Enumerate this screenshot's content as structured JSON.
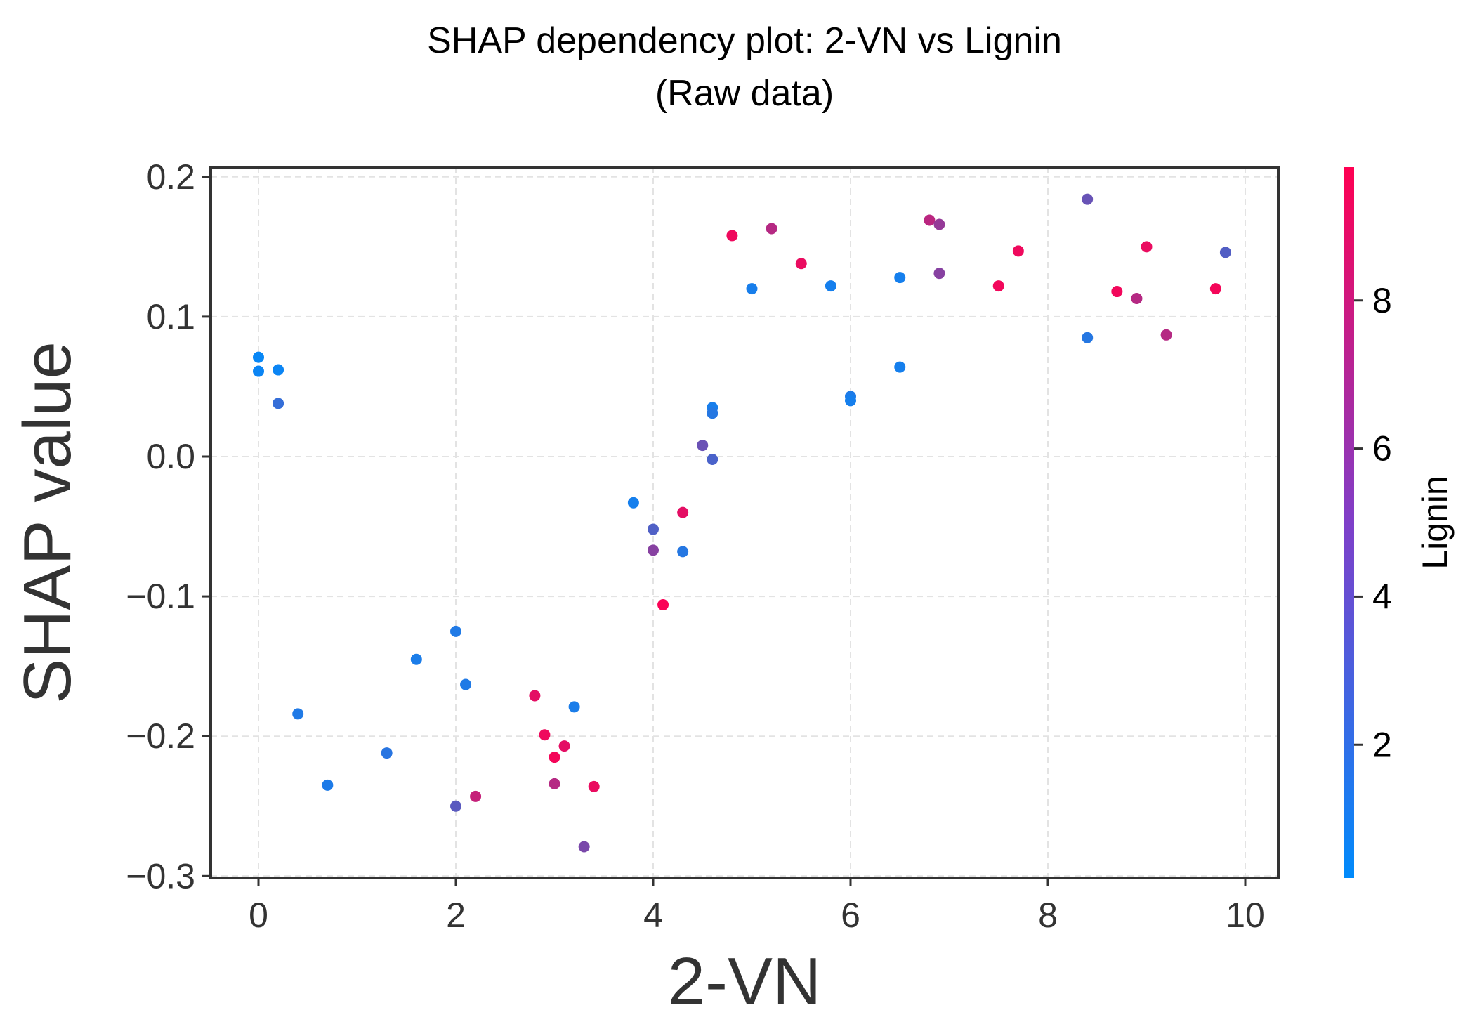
{
  "chart_data": {
    "type": "scatter",
    "title": "SHAP dependency plot: 2-VN vs Lignin",
    "subtitle": "(Raw data)",
    "xlabel": "2-VN",
    "ylabel": "SHAP value",
    "xlim": [
      -0.5,
      10.3
    ],
    "ylim": [
      -0.3,
      0.205
    ],
    "x_ticks": [
      0,
      2,
      4,
      6,
      8,
      10
    ],
    "x_tick_labels": [
      "0",
      "2",
      "4",
      "6",
      "8",
      "10"
    ],
    "y_ticks": [
      -0.3,
      -0.2,
      -0.1,
      0.0,
      0.1,
      0.2
    ],
    "y_tick_labels": [
      "−0.3",
      "−0.2",
      "−0.1",
      "0.0",
      "0.1",
      "0.2"
    ],
    "grid": true,
    "colorbar": {
      "label": "Lignin",
      "range": [
        0.2,
        9.8
      ],
      "ticks": [
        2,
        4,
        6,
        8
      ],
      "tick_labels": [
        "2",
        "4",
        "6",
        "8"
      ],
      "colors": [
        "#008bfb",
        "#ff0052"
      ]
    },
    "points": [
      {
        "x": 0.0,
        "y": 0.071,
        "c": 0.5
      },
      {
        "x": 0.0,
        "y": 0.061,
        "c": 0.6
      },
      {
        "x": 0.2,
        "y": 0.062,
        "c": 0.6
      },
      {
        "x": 0.2,
        "y": 0.038,
        "c": 2.2
      },
      {
        "x": 0.4,
        "y": -0.184,
        "c": 1.4
      },
      {
        "x": 0.7,
        "y": -0.235,
        "c": 1.3
      },
      {
        "x": 1.3,
        "y": -0.212,
        "c": 1.7
      },
      {
        "x": 1.6,
        "y": -0.145,
        "c": 1.2
      },
      {
        "x": 2.0,
        "y": -0.125,
        "c": 1.4
      },
      {
        "x": 2.1,
        "y": -0.163,
        "c": 1.4
      },
      {
        "x": 2.0,
        "y": -0.25,
        "c": 3.6
      },
      {
        "x": 2.2,
        "y": -0.243,
        "c": 7.6
      },
      {
        "x": 2.8,
        "y": -0.171,
        "c": 8.8
      },
      {
        "x": 2.9,
        "y": -0.199,
        "c": 9.2
      },
      {
        "x": 3.0,
        "y": -0.215,
        "c": 9.4
      },
      {
        "x": 3.1,
        "y": -0.207,
        "c": 8.8
      },
      {
        "x": 3.0,
        "y": -0.234,
        "c": 7.0
      },
      {
        "x": 3.2,
        "y": -0.179,
        "c": 1.2
      },
      {
        "x": 3.4,
        "y": -0.236,
        "c": 9.0
      },
      {
        "x": 3.3,
        "y": -0.279,
        "c": 4.8
      },
      {
        "x": 3.8,
        "y": -0.033,
        "c": 1.0
      },
      {
        "x": 4.0,
        "y": -0.052,
        "c": 3.2
      },
      {
        "x": 4.0,
        "y": -0.067,
        "c": 5.3
      },
      {
        "x": 4.3,
        "y": -0.04,
        "c": 8.8
      },
      {
        "x": 4.3,
        "y": -0.068,
        "c": 1.6
      },
      {
        "x": 4.1,
        "y": -0.106,
        "c": 9.6
      },
      {
        "x": 4.5,
        "y": 0.008,
        "c": 4.2
      },
      {
        "x": 4.6,
        "y": -0.002,
        "c": 3.0
      },
      {
        "x": 4.6,
        "y": 0.035,
        "c": 1.1
      },
      {
        "x": 4.6,
        "y": 0.031,
        "c": 1.6
      },
      {
        "x": 4.8,
        "y": 0.158,
        "c": 9.2
      },
      {
        "x": 5.0,
        "y": 0.12,
        "c": 1.1
      },
      {
        "x": 5.2,
        "y": 0.163,
        "c": 7.0
      },
      {
        "x": 5.5,
        "y": 0.138,
        "c": 9.0
      },
      {
        "x": 5.8,
        "y": 0.122,
        "c": 1.0
      },
      {
        "x": 6.0,
        "y": 0.043,
        "c": 1.3
      },
      {
        "x": 6.0,
        "y": 0.04,
        "c": 1.0
      },
      {
        "x": 6.5,
        "y": 0.128,
        "c": 1.0
      },
      {
        "x": 6.5,
        "y": 0.064,
        "c": 1.0
      },
      {
        "x": 6.8,
        "y": 0.169,
        "c": 7.2
      },
      {
        "x": 6.9,
        "y": 0.166,
        "c": 5.8
      },
      {
        "x": 6.9,
        "y": 0.131,
        "c": 5.3
      },
      {
        "x": 7.5,
        "y": 0.122,
        "c": 9.3
      },
      {
        "x": 7.7,
        "y": 0.147,
        "c": 9.2
      },
      {
        "x": 8.4,
        "y": 0.184,
        "c": 4.1
      },
      {
        "x": 8.4,
        "y": 0.085,
        "c": 1.6
      },
      {
        "x": 8.7,
        "y": 0.118,
        "c": 9.3
      },
      {
        "x": 8.9,
        "y": 0.113,
        "c": 7.0
      },
      {
        "x": 9.0,
        "y": 0.15,
        "c": 9.0
      },
      {
        "x": 9.2,
        "y": 0.087,
        "c": 7.0
      },
      {
        "x": 9.7,
        "y": 0.12,
        "c": 9.4
      },
      {
        "x": 9.8,
        "y": 0.146,
        "c": 3.3
      }
    ]
  }
}
